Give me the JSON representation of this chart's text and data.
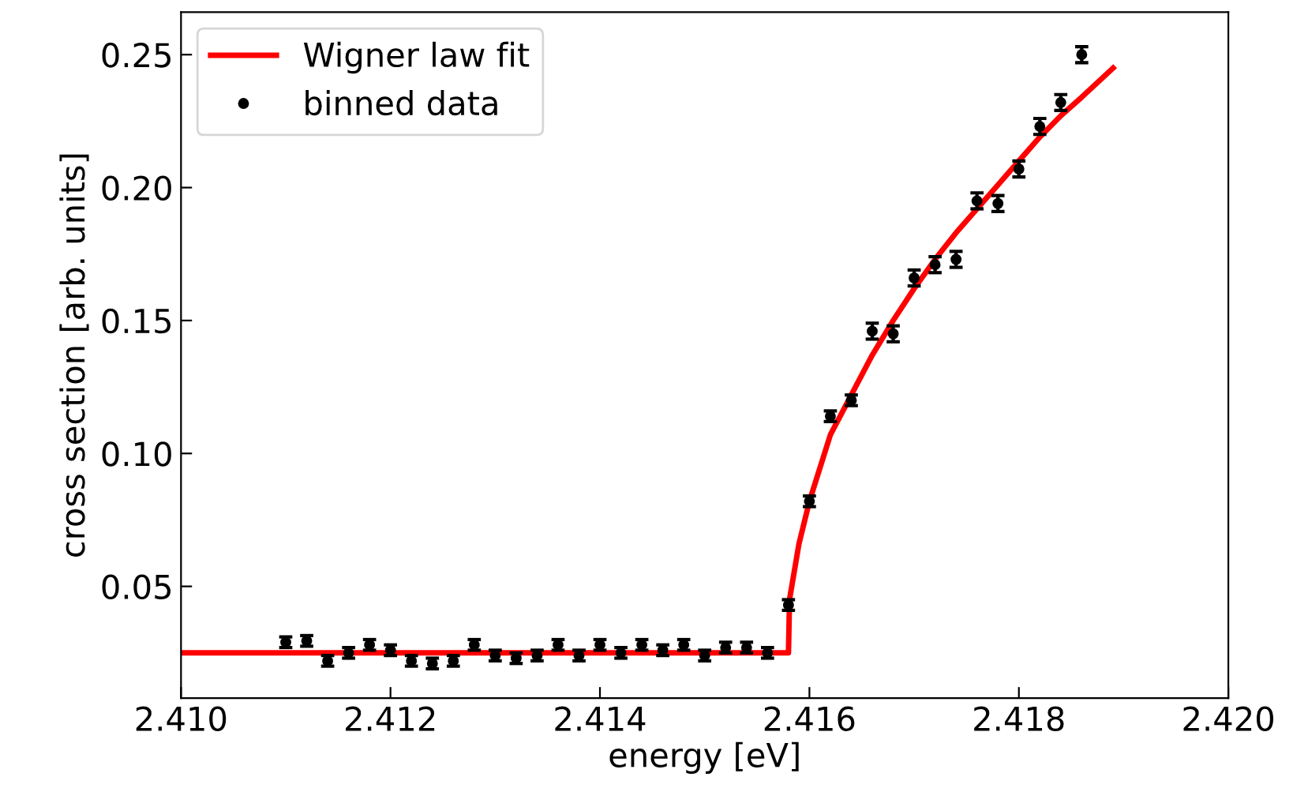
{
  "chart_data": {
    "type": "scatter",
    "xlabel": "energy [eV]",
    "ylabel": "cross section [arb. units]",
    "xlim": [
      2.41,
      2.42
    ],
    "ylim": [
      0.008,
      0.266
    ],
    "xticks": [
      {
        "value": 2.41,
        "label": "2.410"
      },
      {
        "value": 2.412,
        "label": "2.412"
      },
      {
        "value": 2.414,
        "label": "2.414"
      },
      {
        "value": 2.416,
        "label": "2.416"
      },
      {
        "value": 2.418,
        "label": "2.418"
      },
      {
        "value": 2.42,
        "label": "2.420"
      }
    ],
    "yticks": [
      {
        "value": 0.05,
        "label": "0.05"
      },
      {
        "value": 0.1,
        "label": "0.10"
      },
      {
        "value": 0.15,
        "label": "0.15"
      },
      {
        "value": 0.2,
        "label": "0.20"
      },
      {
        "value": 0.25,
        "label": "0.25"
      }
    ],
    "legend": "top left",
    "grid": false,
    "series": [
      {
        "name": "Wigner law fit",
        "type": "line",
        "color": "#ff0000",
        "line_style": "solid",
        "marker": "none",
        "x": [
          2.41,
          2.4158,
          2.41581,
          2.4159,
          2.416,
          2.4162,
          2.4164,
          2.4166,
          2.4168,
          2.417,
          2.4172,
          2.4174,
          2.4176,
          2.4178,
          2.418,
          2.4182,
          2.4184,
          2.4186,
          2.4189
        ],
        "values": [
          0.025,
          0.025,
          0.045,
          0.066,
          0.082,
          0.107,
          0.122,
          0.137,
          0.15,
          0.162,
          0.173,
          0.183,
          0.192,
          0.201,
          0.21,
          0.219,
          0.227,
          0.234,
          0.245
        ]
      },
      {
        "name": "binned data",
        "type": "scatter",
        "color": "#000000",
        "marker": "circle",
        "x": [
          2.411,
          2.4112,
          2.4114,
          2.4116,
          2.4118,
          2.412,
          2.4122,
          2.4124,
          2.4126,
          2.4128,
          2.413,
          2.4132,
          2.4134,
          2.4136,
          2.4138,
          2.414,
          2.4142,
          2.4144,
          2.4146,
          2.4148,
          2.415,
          2.4152,
          2.4154,
          2.4156,
          2.4158,
          2.416,
          2.4162,
          2.4164,
          2.4166,
          2.4168,
          2.417,
          2.4172,
          2.4174,
          2.4176,
          2.4178,
          2.418,
          2.4182,
          2.4184,
          2.4186
        ],
        "values": [
          0.029,
          0.0295,
          0.022,
          0.025,
          0.028,
          0.026,
          0.022,
          0.021,
          0.022,
          0.028,
          0.024,
          0.023,
          0.024,
          0.028,
          0.024,
          0.028,
          0.025,
          0.028,
          0.026,
          0.028,
          0.024,
          0.027,
          0.027,
          0.025,
          0.043,
          0.082,
          0.114,
          0.12,
          0.146,
          0.145,
          0.166,
          0.171,
          0.173,
          0.195,
          0.194,
          0.207,
          0.223,
          0.232,
          0.25
        ],
        "errors": [
          0.002,
          0.002,
          0.002,
          0.002,
          0.002,
          0.002,
          0.002,
          0.002,
          0.002,
          0.002,
          0.002,
          0.002,
          0.002,
          0.002,
          0.002,
          0.002,
          0.002,
          0.002,
          0.002,
          0.002,
          0.002,
          0.002,
          0.002,
          0.002,
          0.002,
          0.002,
          0.002,
          0.002,
          0.003,
          0.003,
          0.003,
          0.003,
          0.003,
          0.003,
          0.003,
          0.003,
          0.003,
          0.003,
          0.003
        ]
      }
    ]
  }
}
